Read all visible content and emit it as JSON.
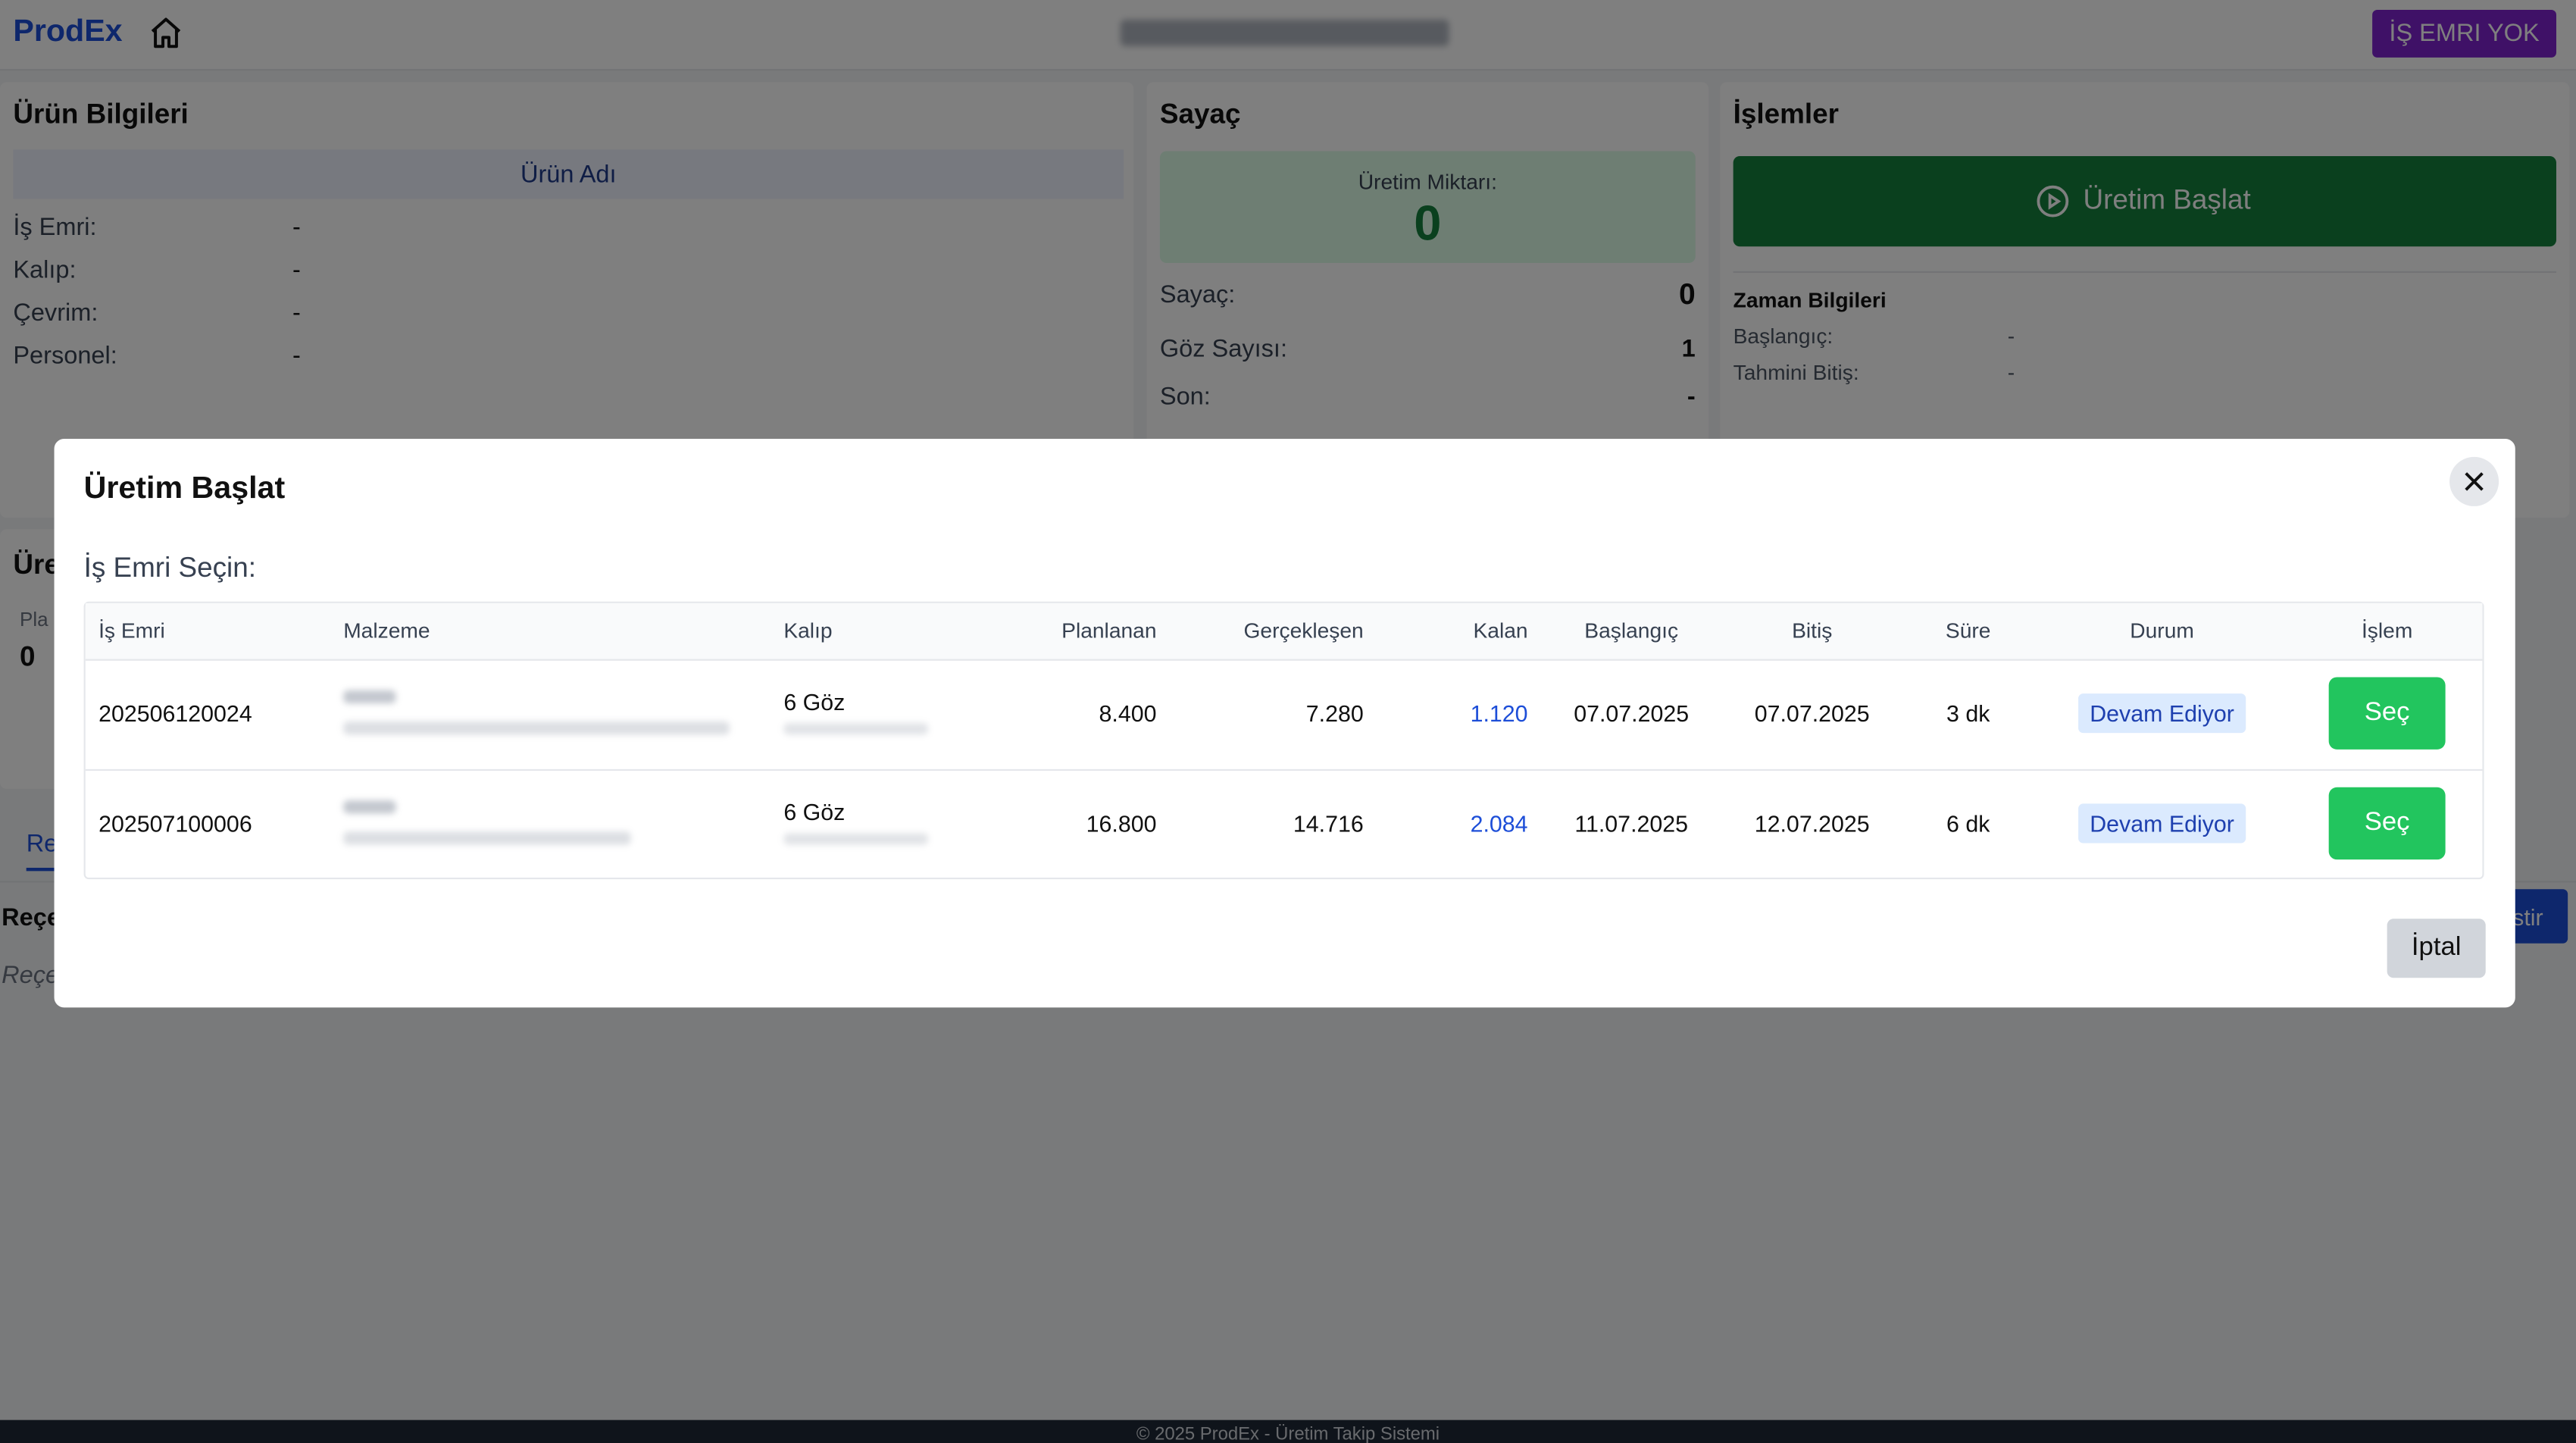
{
  "header": {
    "brand": "ProdEx",
    "status_button": "İŞ EMRI YOK"
  },
  "product_panel": {
    "title": "Ürün Bilgileri",
    "product_name": "Ürün Adı",
    "fields": [
      {
        "label": "İş Emri:",
        "value": "-"
      },
      {
        "label": "Kalıp:",
        "value": "-"
      },
      {
        "label": "Çevrim:",
        "value": "-"
      },
      {
        "label": "Personel:",
        "value": "-"
      }
    ]
  },
  "counter_panel": {
    "title": "Sayaç",
    "production_label": "Üretim Miktarı:",
    "production_value": "0",
    "fields": [
      {
        "label": "Sayaç:",
        "value": "0"
      },
      {
        "label": "Göz Sayısı:",
        "value": "1"
      },
      {
        "label": "Son:",
        "value": "-"
      }
    ]
  },
  "operations_panel": {
    "title": "İşlemler",
    "start_button": "Üretim Başlat",
    "time_title": "Zaman Bilgileri",
    "fields": [
      {
        "label": "Başlangıç:",
        "value": "-"
      },
      {
        "label": "Tahmini Bitiş:",
        "value": "-"
      }
    ]
  },
  "background": {
    "panel_title": "Üre",
    "plan_label": "Pla",
    "plan_value": "0",
    "tab": "Re",
    "section_title": "Reçe",
    "section_note": "Reçe",
    "button": "stir"
  },
  "modal": {
    "title": "Üretim Başlat",
    "prompt": "İş Emri Seçin:",
    "cancel": "İptal",
    "table": {
      "columns": [
        "İş Emri",
        "Malzeme",
        "Kalıp",
        "Planlanan",
        "Gerçekleşen",
        "Kalan",
        "Başlangıç",
        "Bitiş",
        "Süre",
        "Durum",
        "İşlem"
      ],
      "rows": [
        {
          "order": "202506120024",
          "mold": "6 Göz",
          "planned": "8.400",
          "actual": "7.280",
          "remaining": "1.120",
          "start": "07.07.2025",
          "end": "07.07.2025",
          "duration": "3 dk",
          "status": "Devam Ediyor",
          "action": "Seç"
        },
        {
          "order": "202507100006",
          "mold": "6 Göz",
          "planned": "16.800",
          "actual": "14.716",
          "remaining": "2.084",
          "start": "11.07.2025",
          "end": "12.07.2025",
          "duration": "6 dk",
          "status": "Devam Ediyor",
          "action": "Seç"
        }
      ]
    }
  },
  "footer": "© 2025 ProdEx - Üretim Takip Sistemi"
}
